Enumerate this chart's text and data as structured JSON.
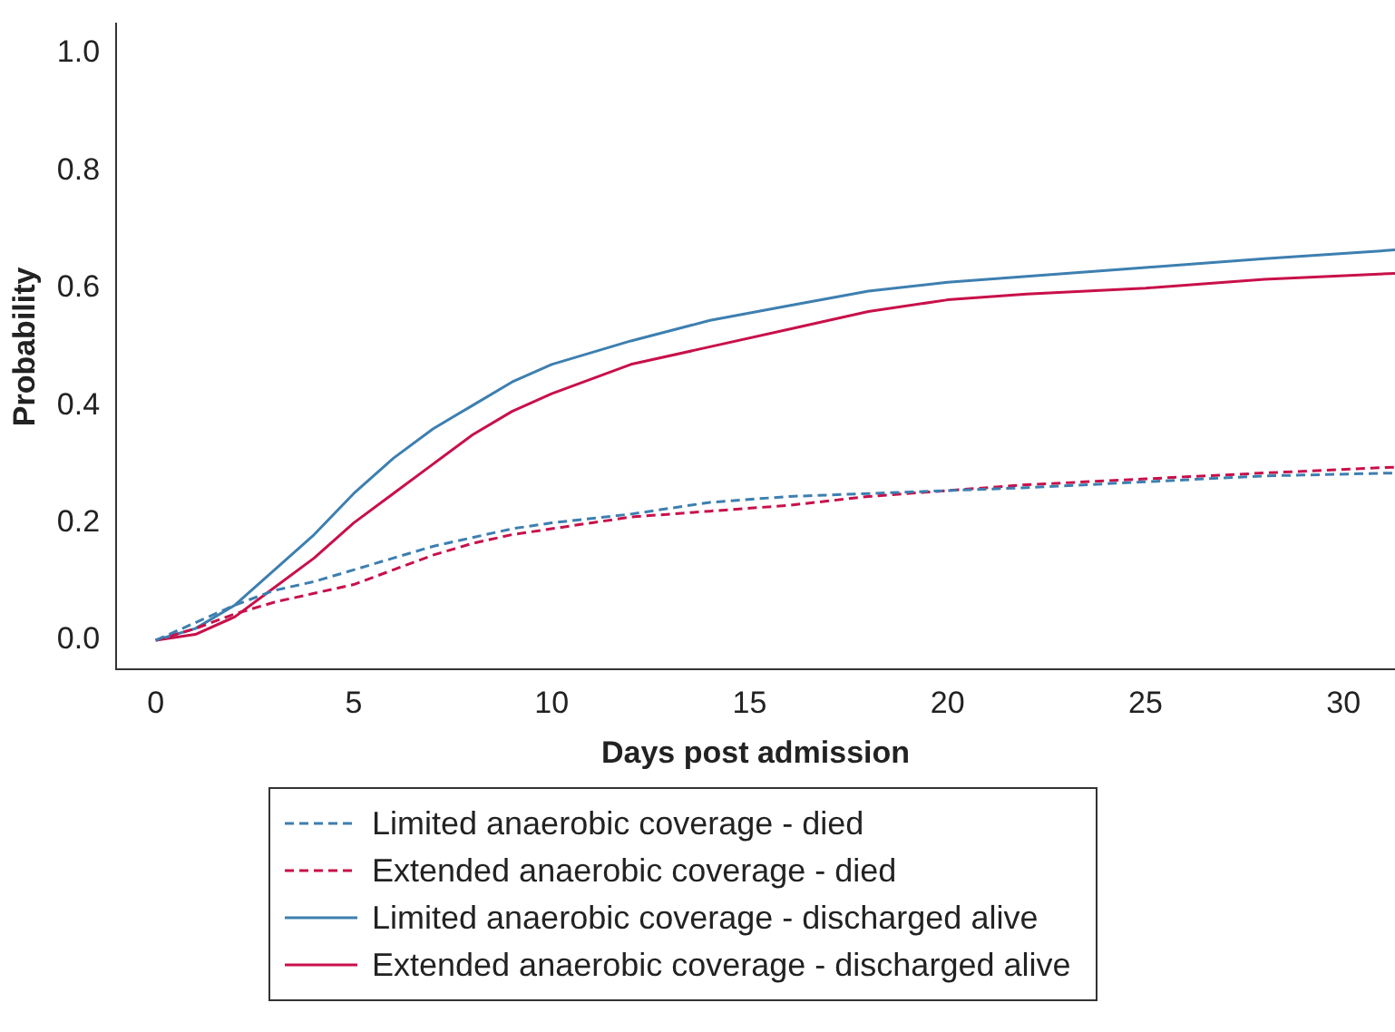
{
  "chart_data": {
    "type": "line",
    "xlabel": "Days post admission",
    "ylabel": "Probability",
    "xlim": [
      -1,
      31.3
    ],
    "ylim": [
      -0.05,
      1.05
    ],
    "xticks": [
      0,
      5,
      10,
      15,
      20,
      25,
      30
    ],
    "yticks": [
      {
        "value": 0,
        "label": "0.0"
      },
      0.2,
      0.4,
      0.6,
      0.8,
      {
        "value": 1,
        "label": "1.0"
      }
    ],
    "grid": false,
    "legend": "bottom",
    "marker": "none",
    "x": [
      0,
      1,
      2,
      3,
      4,
      5,
      6,
      7,
      8,
      9,
      10,
      12,
      14,
      16,
      18,
      20,
      22,
      25,
      28,
      31.3
    ],
    "series": [
      {
        "name": "Limited anaerobic coverage - died",
        "color": "#3d7fb0",
        "line_style": "dashed",
        "values": [
          0,
          0.03,
          0.06,
          0.085,
          0.1,
          0.12,
          0.14,
          0.16,
          0.175,
          0.19,
          0.2,
          0.215,
          0.235,
          0.245,
          0.25,
          0.255,
          0.26,
          0.27,
          0.28,
          0.285
        ]
      },
      {
        "name": "Extended anaerobic coverage - died",
        "color": "#c8104a",
        "line_style": "dashed",
        "values": [
          0,
          0.02,
          0.045,
          0.065,
          0.08,
          0.095,
          0.12,
          0.145,
          0.165,
          0.18,
          0.19,
          0.21,
          0.22,
          0.23,
          0.245,
          0.255,
          0.265,
          0.275,
          0.285,
          0.295
        ]
      },
      {
        "name": "Limited anaerobic coverage - discharged alive",
        "color": "#3d7fb0",
        "line_style": "solid",
        "values": [
          0,
          0.02,
          0.06,
          0.12,
          0.18,
          0.25,
          0.31,
          0.36,
          0.4,
          0.44,
          0.47,
          0.51,
          0.545,
          0.57,
          0.595,
          0.61,
          0.62,
          0.635,
          0.65,
          0.665
        ]
      },
      {
        "name": "Extended anaerobic coverage - discharged alive",
        "color": "#c8104a",
        "line_style": "solid",
        "values": [
          0,
          0.01,
          0.04,
          0.09,
          0.14,
          0.2,
          0.25,
          0.3,
          0.35,
          0.39,
          0.42,
          0.47,
          0.5,
          0.53,
          0.56,
          0.58,
          0.59,
          0.6,
          0.615,
          0.625
        ]
      }
    ]
  }
}
